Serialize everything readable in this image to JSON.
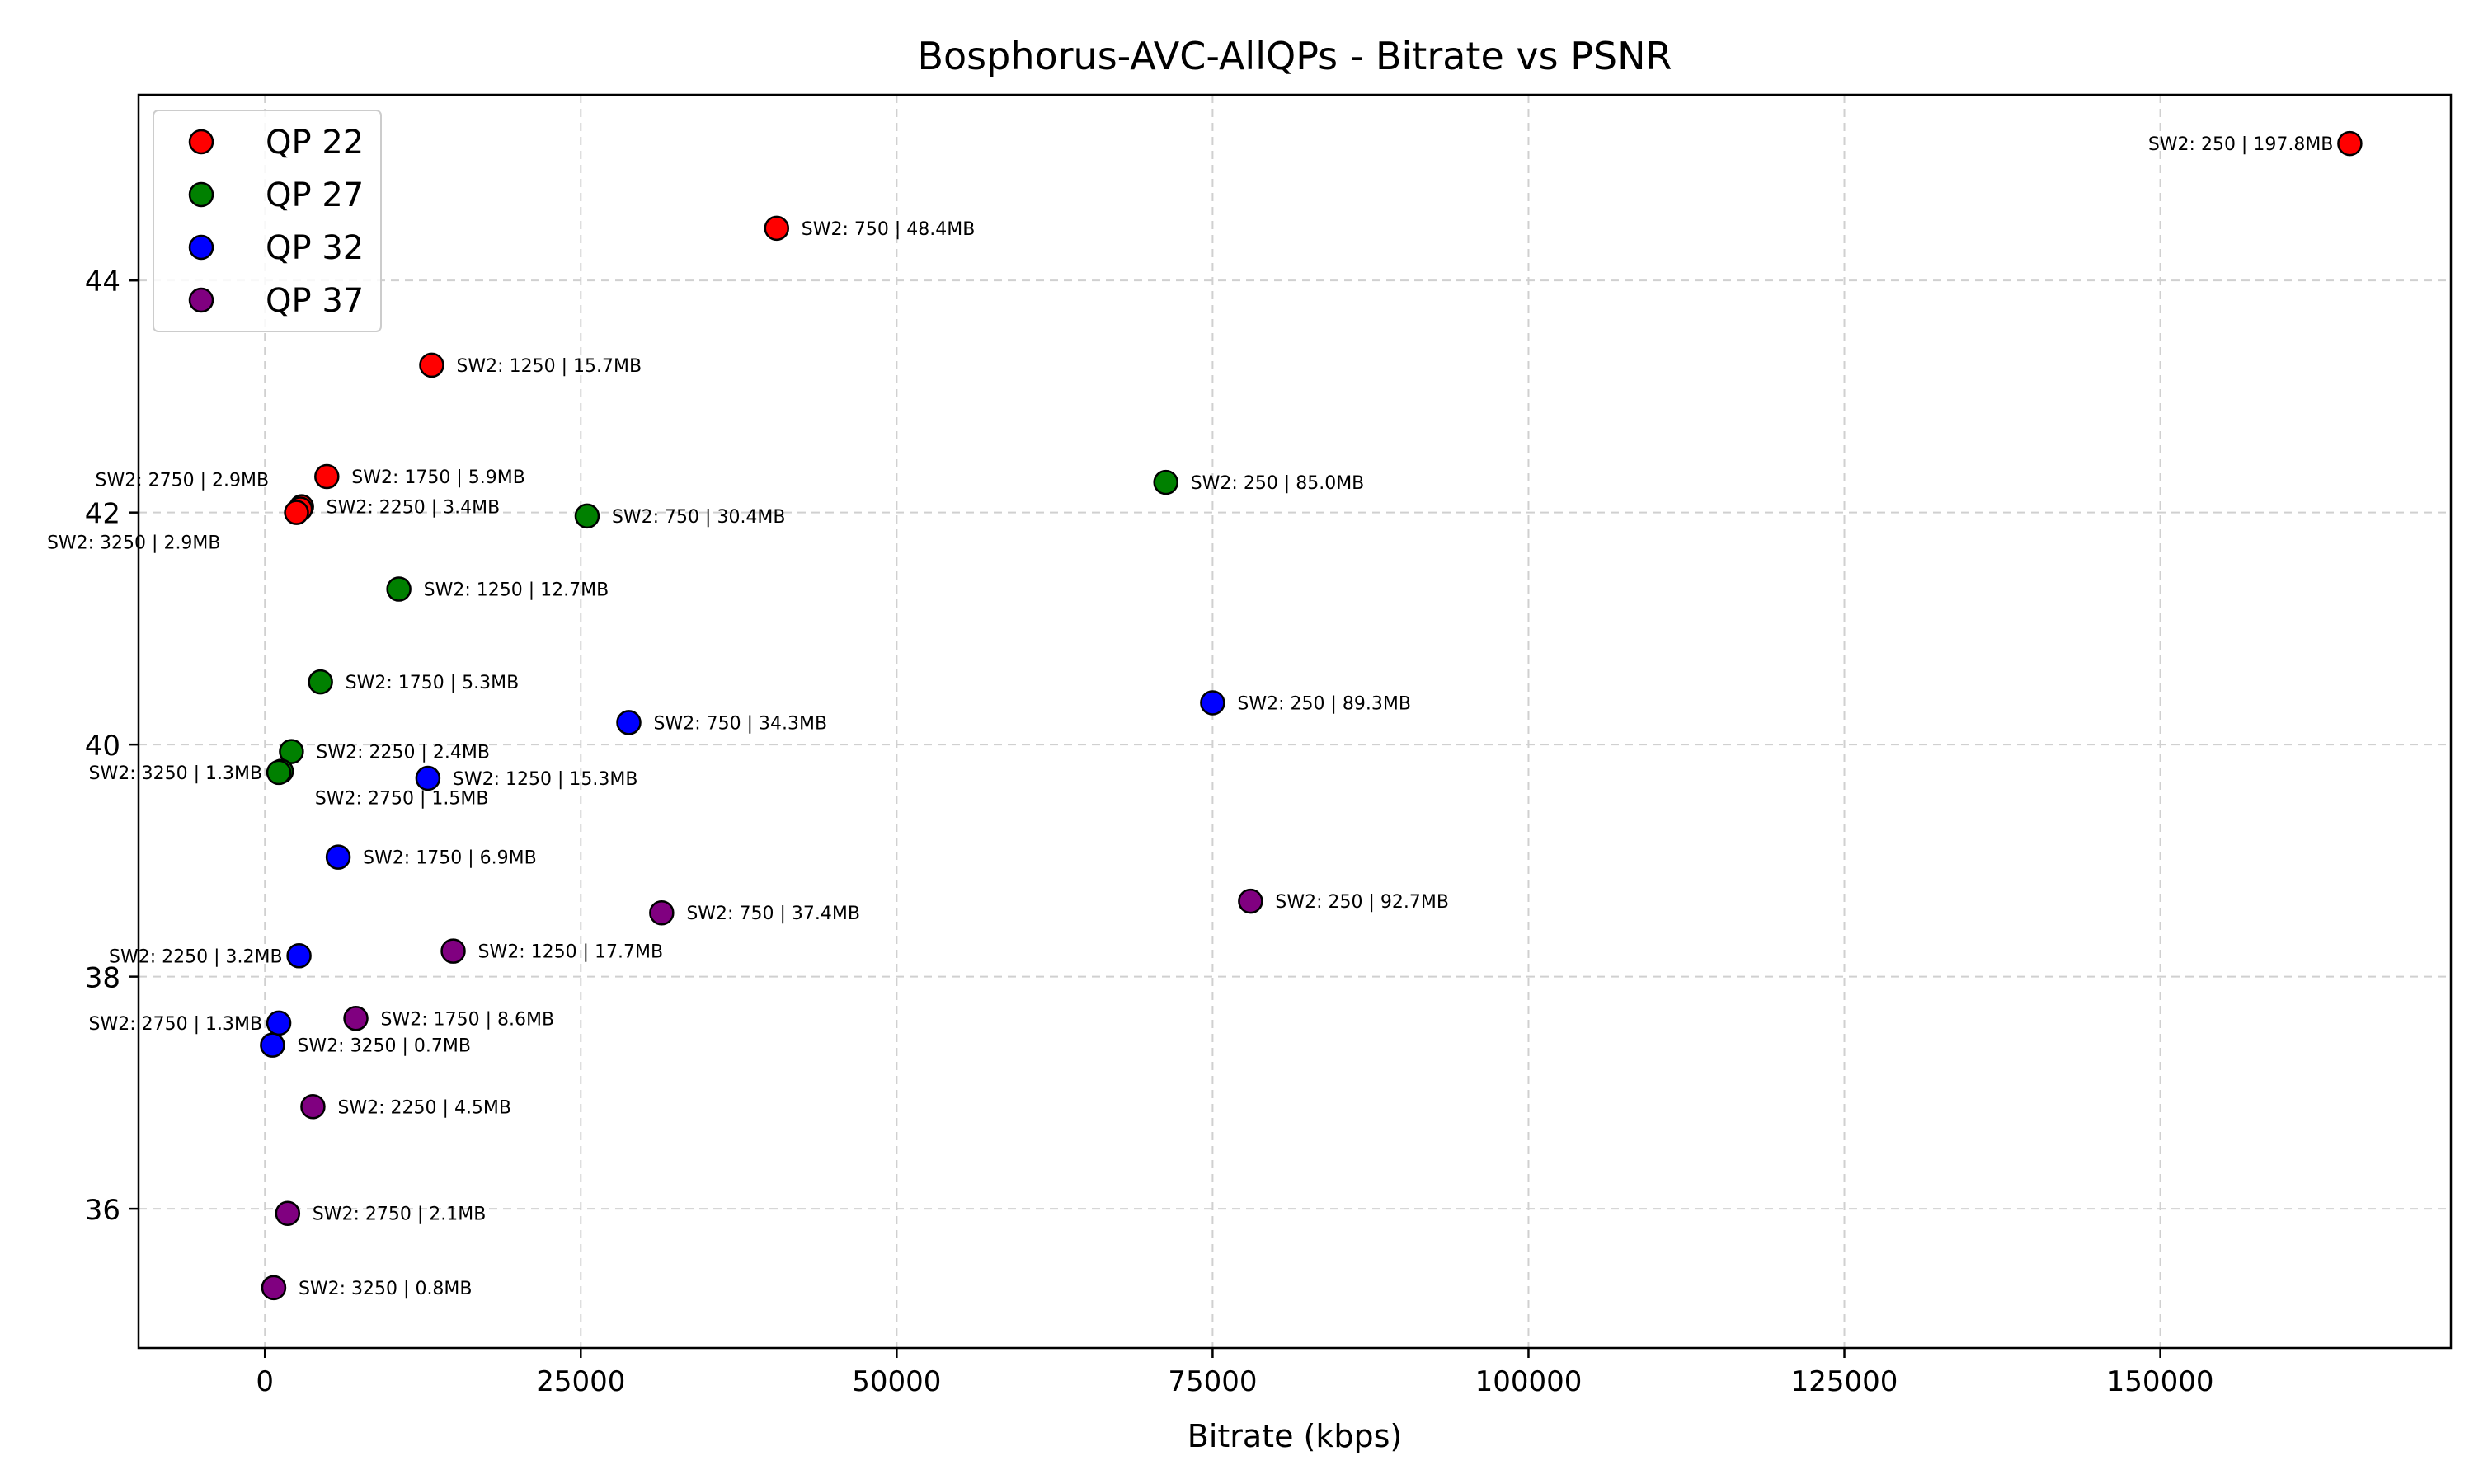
{
  "chart_data": {
    "type": "scatter",
    "title": "Bosphorus-AVC-AllQPs - Bitrate vs PSNR",
    "xlabel": "Bitrate (kbps)",
    "ylabel": "",
    "xlim": [
      -10000,
      173000
    ],
    "ylim": [
      34.8,
      45.6
    ],
    "xticks": [
      "0",
      "25000",
      "50000",
      "75000",
      "100000",
      "125000",
      "150000"
    ],
    "xtick_values": [
      0,
      25000,
      50000,
      75000,
      100000,
      125000,
      150000
    ],
    "yticks": [
      "36",
      "38",
      "40",
      "42",
      "44"
    ],
    "ytick_values": [
      36,
      38,
      40,
      42,
      44
    ],
    "grid": true,
    "legend_position": "top-left",
    "series": [
      {
        "name": "QP 22",
        "color": "#ff0000",
        "points": [
          {
            "x": 165000,
            "y": 45.18,
            "label": "SW2: 250 | 197.8MB",
            "side": "left"
          },
          {
            "x": 40500,
            "y": 44.45,
            "label": "SW2: 750 | 48.4MB",
            "side": "right"
          },
          {
            "x": 13200,
            "y": 43.27,
            "label": "SW2: 1250 | 15.7MB",
            "side": "right"
          },
          {
            "x": 4900,
            "y": 42.31,
            "label": "SW2: 1750 | 5.9MB",
            "side": "right"
          },
          {
            "x": 2900,
            "y": 42.05,
            "label": "SW2: 2250 | 3.4MB",
            "side": "right"
          },
          {
            "x": 2800,
            "y": 42.03,
            "label": "SW2: 2750 | 2.9MB",
            "side": "above-left"
          },
          {
            "x": 2500,
            "y": 42.0,
            "label": "SW2: 3250 | 2.9MB",
            "side": "below-left"
          }
        ]
      },
      {
        "name": "QP 27",
        "color": "#008000",
        "points": [
          {
            "x": 71300,
            "y": 42.26,
            "label": "SW2: 250 | 85.0MB",
            "side": "right"
          },
          {
            "x": 25500,
            "y": 41.97,
            "label": "SW2: 750 | 30.4MB",
            "side": "right"
          },
          {
            "x": 10600,
            "y": 41.34,
            "label": "SW2: 1250 | 12.7MB",
            "side": "right"
          },
          {
            "x": 4400,
            "y": 40.54,
            "label": "SW2: 1750 | 5.3MB",
            "side": "right"
          },
          {
            "x": 2100,
            "y": 39.94,
            "label": "SW2: 2250 | 2.4MB",
            "side": "right"
          },
          {
            "x": 1300,
            "y": 39.77,
            "label": "SW2: 2750 | 1.5MB",
            "side": "below-right"
          },
          {
            "x": 1100,
            "y": 39.76,
            "label": "SW2: 3250 | 1.3MB",
            "side": "left"
          }
        ]
      },
      {
        "name": "QP 32",
        "color": "#0000ff",
        "points": [
          {
            "x": 75000,
            "y": 40.36,
            "label": "SW2: 250 | 89.3MB",
            "side": "right"
          },
          {
            "x": 28800,
            "y": 40.19,
            "label": "SW2: 750 | 34.3MB",
            "side": "right"
          },
          {
            "x": 12900,
            "y": 39.71,
            "label": "SW2: 1250 | 15.3MB",
            "side": "right"
          },
          {
            "x": 5800,
            "y": 39.03,
            "label": "SW2: 1750 | 6.9MB",
            "side": "right"
          },
          {
            "x": 2700,
            "y": 38.18,
            "label": "SW2: 2250 | 3.2MB",
            "side": "left"
          },
          {
            "x": 1100,
            "y": 37.6,
            "label": "SW2: 2750 | 1.3MB",
            "side": "left"
          },
          {
            "x": 600,
            "y": 37.41,
            "label": "SW2: 3250 | 0.7MB",
            "side": "right"
          }
        ]
      },
      {
        "name": "QP 37",
        "color": "#800080",
        "points": [
          {
            "x": 78000,
            "y": 38.65,
            "label": "SW2: 250 | 92.7MB",
            "side": "right"
          },
          {
            "x": 31400,
            "y": 38.55,
            "label": "SW2: 750 | 37.4MB",
            "side": "right"
          },
          {
            "x": 14900,
            "y": 38.22,
            "label": "SW2: 1250 | 17.7MB",
            "side": "right"
          },
          {
            "x": 7200,
            "y": 37.64,
            "label": "SW2: 1750 | 8.6MB",
            "side": "right"
          },
          {
            "x": 3800,
            "y": 36.88,
            "label": "SW2: 2250 | 4.5MB",
            "side": "right"
          },
          {
            "x": 1800,
            "y": 35.96,
            "label": "SW2: 2750 | 2.1MB",
            "side": "right"
          },
          {
            "x": 700,
            "y": 35.32,
            "label": "SW2: 3250 | 0.8MB",
            "side": "right"
          }
        ]
      }
    ]
  }
}
